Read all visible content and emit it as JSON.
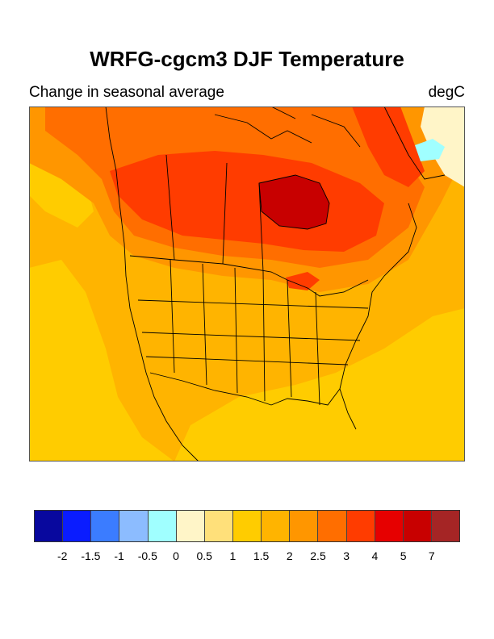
{
  "title": "WRFG-cgcm3 DJF Temperature",
  "subtitle_left": "Change in seasonal average",
  "subtitle_right": "degC",
  "colorbar": {
    "colors": [
      "#08089e",
      "#0a1cff",
      "#3b7cff",
      "#8cbcff",
      "#a0ffff",
      "#fff5c8",
      "#ffe07a",
      "#ffcc00",
      "#ffb400",
      "#ff9600",
      "#ff6e00",
      "#ff3c00",
      "#e60000",
      "#c80000",
      "#a52525"
    ],
    "tick_labels": [
      "-2",
      "-1.5",
      "-1",
      "-0.5",
      "0",
      "0.5",
      "1",
      "1.5",
      "2",
      "2.5",
      "3",
      "4",
      "5",
      "7"
    ]
  },
  "map": {
    "region": "North America",
    "bin_colors": {
      "ice_cyan": "#a0ffff",
      "pale": "#fff5c8",
      "b1_1p5": "#ffcc00",
      "b1p5_2": "#ffb400",
      "b2_2p5": "#ff9600",
      "b2p5_3": "#ff6e00",
      "b3_4": "#ff3c00",
      "b5_7": "#c80000"
    }
  }
}
